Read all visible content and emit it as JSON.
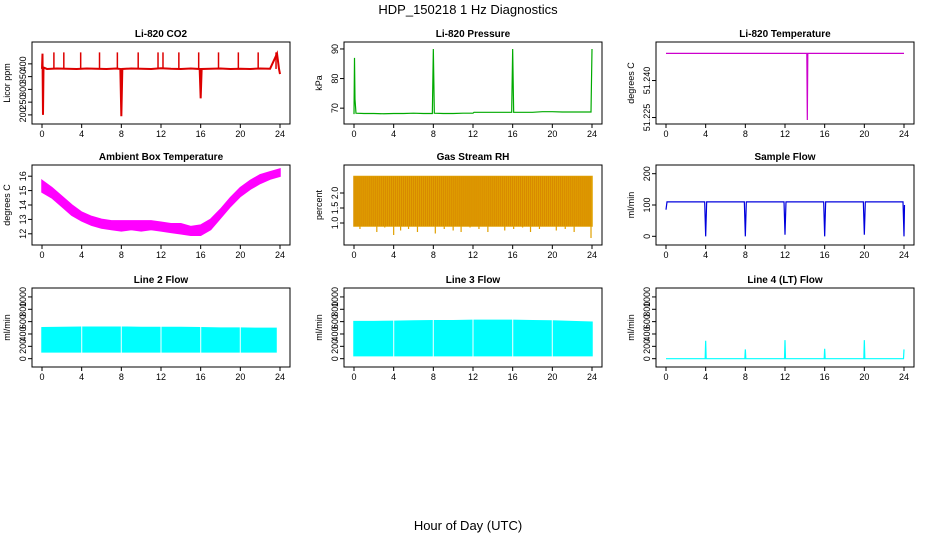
{
  "title": "HDP_150218 1 Hz Diagnostics",
  "xlabel": "Hour of Day (UTC)",
  "chart_data": [
    {
      "id": "co2",
      "type": "line",
      "title": "Li-820 CO2",
      "ylabel": "Licor ppm",
      "color": "#dd0000",
      "xlim": [
        0,
        24
      ],
      "ylim": [
        180,
        470
      ],
      "xticks": [
        "0",
        "4",
        "8",
        "12",
        "16",
        "20",
        "24"
      ],
      "yticks": [
        "200",
        "250",
        "300",
        "350",
        "400"
      ],
      "series": [
        {
          "x": [
            0,
            0.05,
            0.1,
            0.15,
            0.2,
            0.5,
            1.5,
            2.5,
            3.5,
            4.5,
            5.5,
            6.5,
            7.5,
            7.9,
            8.0,
            8.1,
            9,
            10,
            11,
            12,
            13,
            14,
            15,
            15.9,
            16.0,
            16.1,
            17,
            18,
            19,
            20,
            21,
            22,
            23,
            23.7,
            23.9,
            24.0
          ],
          "y": [
            380,
            440,
            200,
            380,
            385,
            380,
            382,
            381,
            380,
            382,
            381,
            380,
            382,
            380,
            195,
            380,
            382,
            381,
            380,
            383,
            381,
            380,
            382,
            380,
            265,
            380,
            381,
            382,
            380,
            381,
            380,
            382,
            381,
            440,
            380,
            360
          ]
        }
      ],
      "spikes": {
        "x": [
          1.2,
          2.2,
          3.9,
          5.8,
          7.6,
          9.7,
          11.7,
          12.2,
          13.8,
          15.8,
          17.8,
          19.8,
          21.8,
          23.6
        ],
        "y": [
          445,
          445,
          445,
          445,
          445,
          445,
          445,
          445,
          445,
          445,
          445,
          445,
          445,
          445
        ]
      }
    },
    {
      "id": "pressure",
      "type": "line",
      "title": "Li-820 Pressure",
      "ylabel": "kPa",
      "color": "#00aa00",
      "xlim": [
        0,
        24
      ],
      "ylim": [
        66,
        91
      ],
      "xticks": [
        "0",
        "4",
        "8",
        "12",
        "16",
        "20",
        "24"
      ],
      "yticks": [
        "70",
        "80",
        "90"
      ],
      "series": [
        {
          "x": [
            0,
            0.05,
            0.1,
            0.2,
            1,
            2,
            3,
            4,
            5,
            6,
            7,
            7.9,
            8.0,
            8.1,
            9,
            10,
            11,
            12,
            12.1,
            13,
            14,
            15,
            15.9,
            16.0,
            16.1,
            17,
            18,
            19,
            20,
            21,
            22,
            23,
            23.9,
            24.0
          ],
          "y": [
            68,
            87,
            73,
            68.3,
            68.2,
            68.2,
            68.1,
            68.2,
            68.2,
            68.3,
            68.2,
            68.2,
            90,
            68.3,
            68.2,
            68.2,
            68.3,
            68.3,
            68.6,
            68.6,
            68.6,
            68.6,
            68.6,
            90,
            68.6,
            68.6,
            68.6,
            68.8,
            68.8,
            68.7,
            68.7,
            68.7,
            68.7,
            90
          ]
        }
      ]
    },
    {
      "id": "temperature",
      "type": "line",
      "title": "Li-820 Temperature",
      "ylabel": "degrees C",
      "color": "#cc00cc",
      "xlim": [
        0,
        24
      ],
      "ylim": [
        51.224,
        51.254
      ],
      "xticks": [
        "0",
        "4",
        "8",
        "12",
        "16",
        "20",
        "24"
      ],
      "yticks": [
        "51.225",
        "51.240"
      ],
      "series": [
        {
          "x": [
            0,
            14.2,
            14.25,
            14.3,
            24
          ],
          "y": [
            51.251,
            51.251,
            51.224,
            51.251,
            51.251
          ]
        }
      ]
    },
    {
      "id": "ambient",
      "type": "area",
      "title": "Ambient Box Temperature",
      "ylabel": "degrees C",
      "color": "#ff00ff",
      "xlim": [
        0,
        24
      ],
      "ylim": [
        11.5,
        16.5
      ],
      "xticks": [
        "0",
        "4",
        "8",
        "12",
        "16",
        "20",
        "24"
      ],
      "yticks": [
        "12",
        "13",
        "14",
        "15",
        "16"
      ],
      "band": {
        "x": [
          0,
          1,
          2,
          3,
          4,
          5,
          6,
          7,
          8,
          9,
          10,
          11,
          12,
          13,
          14,
          15,
          16,
          17,
          18,
          19,
          20,
          21,
          22,
          23,
          24
        ],
        "lo": [
          14.9,
          14.5,
          13.9,
          13.3,
          12.9,
          12.6,
          12.4,
          12.3,
          12.2,
          12.3,
          12.2,
          12.3,
          12.2,
          12.1,
          12.0,
          11.9,
          11.9,
          12.3,
          13.1,
          13.9,
          14.6,
          15.1,
          15.5,
          15.8,
          16.0
        ],
        "hi": [
          15.7,
          15.2,
          14.6,
          14.0,
          13.5,
          13.2,
          13.0,
          12.9,
          12.9,
          12.9,
          12.9,
          12.9,
          12.8,
          12.7,
          12.7,
          12.5,
          12.6,
          13.0,
          13.7,
          14.5,
          15.2,
          15.7,
          16.1,
          16.3,
          16.5
        ]
      }
    },
    {
      "id": "rh",
      "type": "area",
      "title": "Gas Stream RH",
      "ylabel": "percent",
      "color": "#e0a000",
      "xlim": [
        0,
        24
      ],
      "ylim": [
        0.4,
        2.8
      ],
      "xticks": [
        "0",
        "4",
        "8",
        "12",
        "16",
        "20",
        "24"
      ],
      "yticks": [
        "1.0",
        "1.5",
        "2.0"
      ],
      "band": {
        "x": [
          0,
          24
        ],
        "lo": [
          0.9,
          0.9
        ],
        "hi": [
          2.55,
          2.55
        ]
      },
      "drops": {
        "x": [
          0.6,
          1.4,
          2.3,
          3.1,
          4.0,
          4.7,
          5.5,
          6.4,
          7.3,
          8.2,
          9.1,
          10.0,
          10.8,
          11.7,
          12.6,
          13.5,
          14.3,
          15.2,
          16.1,
          17.0,
          17.8,
          18.7,
          19.6,
          20.4,
          21.3,
          22.2,
          23.1,
          23.9
        ],
        "y": [
          0.8,
          0.9,
          0.7,
          0.85,
          0.6,
          0.75,
          0.8,
          0.7,
          0.9,
          0.65,
          0.8,
          0.75,
          0.7,
          0.85,
          0.8,
          0.7,
          0.9,
          0.75,
          0.8,
          0.85,
          0.7,
          0.8,
          0.9,
          0.75,
          0.8,
          0.7,
          0.9,
          0.5
        ]
      }
    },
    {
      "id": "sample",
      "type": "line",
      "title": "Sample Flow",
      "ylabel": "ml/min",
      "color": "#0000dd",
      "xlim": [
        0,
        24
      ],
      "ylim": [
        -15,
        215
      ],
      "xticks": [
        "0",
        "4",
        "8",
        "12",
        "16",
        "20",
        "24"
      ],
      "yticks": [
        "0",
        "100",
        "200"
      ],
      "series": [
        {
          "x": [
            0,
            0.1,
            0.2,
            3.9,
            4.0,
            4.1,
            7.9,
            8.0,
            8.1,
            11.9,
            12.0,
            12.1,
            15.9,
            16.0,
            16.1,
            19.9,
            20.0,
            20.1,
            23.9,
            24.0,
            24.05
          ],
          "y": [
            85,
            110,
            110,
            110,
            0,
            110,
            110,
            0,
            110,
            110,
            5,
            110,
            110,
            0,
            110,
            110,
            5,
            110,
            110,
            0,
            100
          ]
        }
      ]
    },
    {
      "id": "line2",
      "type": "area",
      "title": "Line 2 Flow",
      "ylabel": "ml/min",
      "color": "#00ffff",
      "xlim": [
        0,
        24
      ],
      "ylim": [
        -70,
        1080
      ],
      "xticks": [
        "0",
        "4",
        "8",
        "12",
        "16",
        "20",
        "24"
      ],
      "yticks": [
        "0",
        "200",
        "400",
        "600",
        "800",
        "1000"
      ],
      "band": {
        "x": [
          0,
          2,
          4,
          6,
          8,
          10,
          12,
          14,
          16,
          18,
          20,
          22,
          23.6
        ],
        "lo": [
          110,
          110,
          110,
          110,
          110,
          110,
          110,
          110,
          110,
          110,
          110,
          110,
          110
        ],
        "hi": [
          500,
          505,
          510,
          510,
          510,
          505,
          505,
          505,
          500,
          495,
          495,
          490,
          490
        ]
      },
      "gaps": [
        4,
        8,
        12,
        16,
        20
      ]
    },
    {
      "id": "line3",
      "type": "area",
      "title": "Line 3 Flow",
      "ylabel": "ml/min",
      "color": "#00ffff",
      "xlim": [
        0,
        24
      ],
      "ylim": [
        -70,
        1080
      ],
      "xticks": [
        "0",
        "4",
        "8",
        "12",
        "16",
        "20",
        "24"
      ],
      "yticks": [
        "0",
        "200",
        "400",
        "600",
        "800",
        "1000"
      ],
      "band": {
        "x": [
          0,
          2,
          4,
          6,
          8,
          10,
          12,
          14,
          16,
          18,
          20,
          22,
          24
        ],
        "lo": [
          50,
          50,
          50,
          50,
          50,
          50,
          50,
          50,
          50,
          50,
          50,
          50,
          50
        ],
        "hi": [
          600,
          600,
          605,
          610,
          615,
          615,
          620,
          620,
          620,
          615,
          610,
          600,
          590
        ]
      },
      "gaps": [
        4,
        8,
        12,
        16,
        20
      ]
    },
    {
      "id": "line4",
      "type": "line",
      "title": "Line 4 (LT) Flow",
      "ylabel": "ml/min",
      "color": "#00ffff",
      "xlim": [
        0,
        24
      ],
      "ylim": [
        -70,
        1080
      ],
      "xticks": [
        "0",
        "4",
        "8",
        "12",
        "16",
        "20",
        "24"
      ],
      "yticks": [
        "0",
        "200",
        "400",
        "600",
        "800",
        "1000"
      ],
      "series": [
        {
          "x": [
            0,
            3.95,
            4.0,
            4.05,
            7.95,
            8.0,
            8.05,
            11.95,
            12.0,
            12.05,
            15.95,
            16.0,
            16.05,
            19.95,
            20.0,
            20.05,
            23.95,
            24.0
          ],
          "y": [
            0,
            0,
            290,
            0,
            0,
            150,
            0,
            0,
            300,
            0,
            0,
            160,
            0,
            0,
            300,
            0,
            0,
            150
          ]
        }
      ]
    }
  ]
}
